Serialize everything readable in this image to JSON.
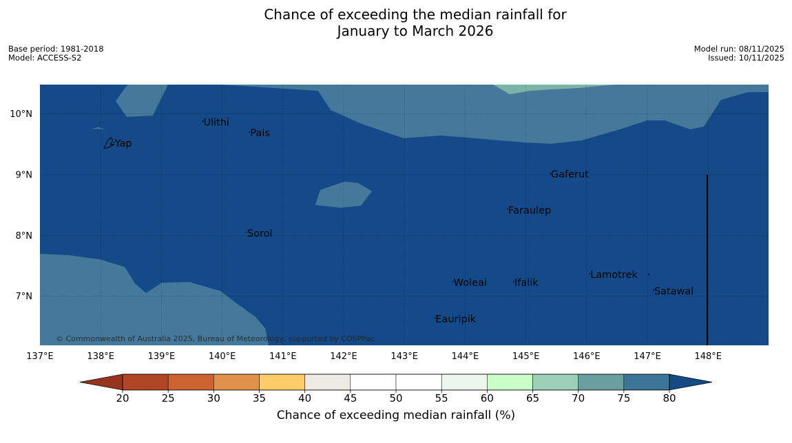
{
  "title": {
    "line1": "Chance of exceeding the median rainfall for",
    "line2": "January to March 2026"
  },
  "meta_left": {
    "base_period": "Base period: 1981-2018",
    "model": "Model: ACCESS-S2"
  },
  "meta_right": {
    "model_run": "Model run: 08/11/2025",
    "issued": "Issued: 10/11/2025"
  },
  "map": {
    "lon_ticks": [
      "137°E",
      "138°E",
      "139°E",
      "140°E",
      "141°E",
      "142°E",
      "143°E",
      "144°E",
      "145°E",
      "146°E",
      "147°E",
      "148°E"
    ],
    "lat_ticks": [
      "10°N",
      "9°N",
      "8°N",
      "7°N"
    ],
    "places": [
      {
        "name": "Yap",
        "lon": 138.22,
        "lat": 9.53
      },
      {
        "name": "Ulithi",
        "lon": 139.68,
        "lat": 9.88
      },
      {
        "name": "Pais",
        "lon": 140.45,
        "lat": 9.7
      },
      {
        "name": "Gaferut",
        "lon": 145.4,
        "lat": 9.02
      },
      {
        "name": "Faraulep",
        "lon": 144.7,
        "lat": 8.43
      },
      {
        "name": "Sorol",
        "lon": 140.4,
        "lat": 8.05
      },
      {
        "name": "Lamotrek",
        "lon": 146.05,
        "lat": 7.37
      },
      {
        "name": "Woleai",
        "lon": 143.8,
        "lat": 7.24
      },
      {
        "name": "Ifalik",
        "lon": 144.8,
        "lat": 7.24
      },
      {
        "name": "Satawal",
        "lon": 147.1,
        "lat": 7.1
      },
      {
        "name": "Eauripik",
        "lon": 143.5,
        "lat": 6.64
      }
    ],
    "credit": "© Commonwealth of Australia 2025, Bureau of Meteorology, supported by COSPPac",
    "colors": {
      "over_80": "#134a87",
      "70_75": "#45799b",
      "65_70": "#79b4a6"
    }
  },
  "colorbar": {
    "label": "Chance of exceeding median rainfall (%)",
    "ticks": [
      "20",
      "25",
      "30",
      "35",
      "40",
      "45",
      "50",
      "55",
      "60",
      "65",
      "70",
      "75",
      "80"
    ],
    "colors": [
      "#b14626",
      "#cd6232",
      "#e19248",
      "#fecc69",
      "#ede9e3",
      "#ffffff",
      "#ffffff",
      "#ecf6ec",
      "#c9fec9",
      "#9ecfb8",
      "#6b9f9f",
      "#3c7596"
    ],
    "under_color": "#96341d",
    "over_color": "#144b85"
  }
}
